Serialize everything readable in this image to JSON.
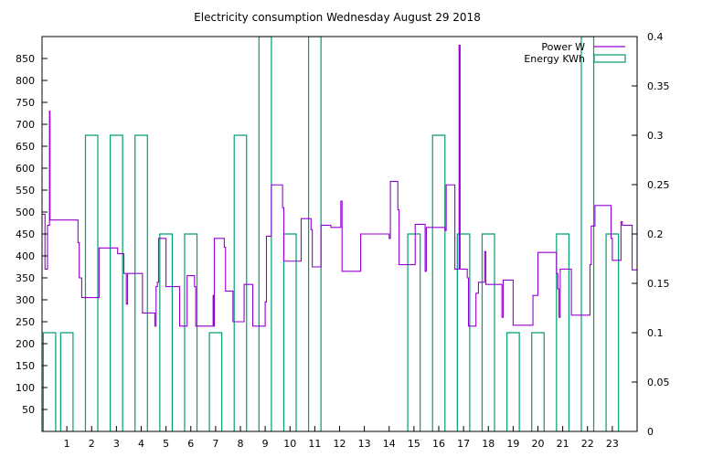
{
  "chart_data": {
    "type": "line",
    "title": "Electricity consumption Wednesday August 29 2018",
    "xlabel": "",
    "ylabel": "",
    "y2label": "",
    "xlim": [
      0,
      24
    ],
    "ylim": [
      0,
      900
    ],
    "y2lim": [
      0,
      0.4
    ],
    "grid": false,
    "legend_position": "top-right",
    "x_ticks": [
      1,
      2,
      3,
      4,
      5,
      6,
      7,
      8,
      9,
      10,
      11,
      12,
      13,
      14,
      15,
      16,
      17,
      18,
      19,
      20,
      21,
      22,
      23
    ],
    "y_ticks": [
      50,
      100,
      150,
      200,
      250,
      300,
      350,
      400,
      450,
      500,
      550,
      600,
      650,
      700,
      750,
      800,
      850
    ],
    "y2_ticks": [
      "0",
      "0.05",
      "0.1",
      "0.15",
      "0.2",
      "0.25",
      "0.3",
      "0.35",
      "0.4"
    ],
    "series": [
      {
        "name": "Power W",
        "color": "#9400d3",
        "axis": "left",
        "style": "steps",
        "points": [
          [
            0.0,
            495
          ],
          [
            0.12,
            370
          ],
          [
            0.22,
            470
          ],
          [
            0.3,
            730
          ],
          [
            0.32,
            482
          ],
          [
            1.4,
            482
          ],
          [
            1.45,
            430
          ],
          [
            1.5,
            350
          ],
          [
            1.6,
            305
          ],
          [
            2.25,
            305
          ],
          [
            2.3,
            418
          ],
          [
            3.0,
            418
          ],
          [
            3.05,
            405
          ],
          [
            3.25,
            405
          ],
          [
            3.3,
            360
          ],
          [
            3.4,
            290
          ],
          [
            3.45,
            360
          ],
          [
            4.0,
            360
          ],
          [
            4.05,
            270
          ],
          [
            4.5,
            270
          ],
          [
            4.55,
            240
          ],
          [
            4.6,
            330
          ],
          [
            4.65,
            340
          ],
          [
            4.7,
            440
          ],
          [
            4.95,
            440
          ],
          [
            5.0,
            330
          ],
          [
            5.5,
            330
          ],
          [
            5.55,
            240
          ],
          [
            5.8,
            240
          ],
          [
            5.85,
            355
          ],
          [
            6.1,
            355
          ],
          [
            6.15,
            330
          ],
          [
            6.2,
            240
          ],
          [
            6.85,
            240
          ],
          [
            6.9,
            310
          ],
          [
            6.92,
            240
          ],
          [
            6.95,
            440
          ],
          [
            7.3,
            440
          ],
          [
            7.35,
            420
          ],
          [
            7.4,
            320
          ],
          [
            7.65,
            320
          ],
          [
            7.7,
            250
          ],
          [
            8.1,
            250
          ],
          [
            8.15,
            335
          ],
          [
            8.45,
            335
          ],
          [
            8.5,
            240
          ],
          [
            8.95,
            240
          ],
          [
            9.0,
            295
          ],
          [
            9.05,
            445
          ],
          [
            9.2,
            445
          ],
          [
            9.25,
            562
          ],
          [
            9.65,
            562
          ],
          [
            9.7,
            510
          ],
          [
            9.75,
            388
          ],
          [
            10.4,
            388
          ],
          [
            10.45,
            485
          ],
          [
            10.8,
            485
          ],
          [
            10.85,
            460
          ],
          [
            10.9,
            375
          ],
          [
            11.2,
            375
          ],
          [
            11.25,
            470
          ],
          [
            11.6,
            470
          ],
          [
            11.65,
            465
          ],
          [
            12.0,
            465
          ],
          [
            12.05,
            525
          ],
          [
            12.1,
            365
          ],
          [
            12.8,
            365
          ],
          [
            12.85,
            450
          ],
          [
            13.95,
            450
          ],
          [
            14.0,
            440
          ],
          [
            14.05,
            570
          ],
          [
            14.3,
            570
          ],
          [
            14.35,
            505
          ],
          [
            14.4,
            380
          ],
          [
            15.0,
            380
          ],
          [
            15.05,
            472
          ],
          [
            15.4,
            472
          ],
          [
            15.45,
            365
          ],
          [
            15.5,
            465
          ],
          [
            16.2,
            465
          ],
          [
            16.25,
            458
          ],
          [
            16.3,
            562
          ],
          [
            16.6,
            562
          ],
          [
            16.65,
            370
          ],
          [
            16.8,
            370
          ],
          [
            16.82,
            880
          ],
          [
            16.86,
            370
          ],
          [
            17.1,
            370
          ],
          [
            17.15,
            350
          ],
          [
            17.2,
            240
          ],
          [
            17.45,
            240
          ],
          [
            17.5,
            315
          ],
          [
            17.6,
            340
          ],
          [
            17.8,
            340
          ],
          [
            17.85,
            410
          ],
          [
            17.9,
            335
          ],
          [
            18.5,
            335
          ],
          [
            18.55,
            260
          ],
          [
            18.6,
            345
          ],
          [
            18.95,
            345
          ],
          [
            19.0,
            242
          ],
          [
            19.75,
            242
          ],
          [
            19.8,
            310
          ],
          [
            19.95,
            310
          ],
          [
            20.0,
            408
          ],
          [
            20.7,
            408
          ],
          [
            20.75,
            360
          ],
          [
            20.8,
            325
          ],
          [
            20.85,
            260
          ],
          [
            20.9,
            370
          ],
          [
            21.3,
            370
          ],
          [
            21.35,
            265
          ],
          [
            22.05,
            265
          ],
          [
            22.1,
            380
          ],
          [
            22.15,
            468
          ],
          [
            22.3,
            515
          ],
          [
            22.9,
            515
          ],
          [
            22.95,
            440
          ],
          [
            23.0,
            390
          ],
          [
            23.3,
            390
          ],
          [
            23.35,
            478
          ],
          [
            23.4,
            470
          ],
          [
            23.75,
            470
          ],
          [
            23.8,
            368
          ],
          [
            24.0,
            368
          ]
        ]
      },
      {
        "name": "Energy KWh",
        "color": "#009e73",
        "axis": "right",
        "style": "boxes",
        "boxes": [
          [
            0.05,
            0.1
          ],
          [
            0.75,
            0.1
          ],
          [
            1.75,
            0.3
          ],
          [
            2.75,
            0.3
          ],
          [
            3.75,
            0.3
          ],
          [
            4.75,
            0.2
          ],
          [
            5.75,
            0.2
          ],
          [
            6.75,
            0.1
          ],
          [
            7.75,
            0.3
          ],
          [
            8.75,
            0.4
          ],
          [
            9.75,
            0.2
          ],
          [
            10.75,
            0.4
          ],
          [
            14.75,
            0.2
          ],
          [
            15.75,
            0.3
          ],
          [
            16.75,
            0.2
          ],
          [
            17.75,
            0.2
          ],
          [
            18.75,
            0.1
          ],
          [
            19.75,
            0.1
          ],
          [
            20.75,
            0.2
          ],
          [
            21.75,
            0.4
          ],
          [
            22.75,
            0.2
          ]
        ]
      }
    ]
  }
}
